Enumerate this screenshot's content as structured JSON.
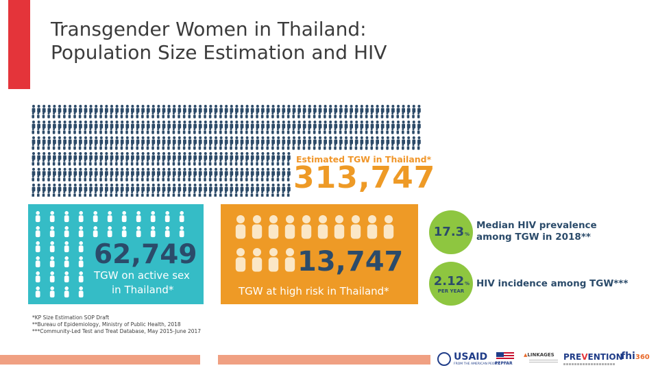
{
  "title": {
    "line1": "Transgender Women in Thailand:",
    "line2": "Population Size Estimation and HIV"
  },
  "estimated": {
    "label": "Estimated TGW in Thailand*",
    "value": "313,747"
  },
  "active_sex": {
    "value": "62,749",
    "caption_line1": "TGW on active sex",
    "caption_line2": "in Thailand*"
  },
  "high_risk": {
    "value": "13,747",
    "caption": "TGW at high risk in Thailand*"
  },
  "prevalence": {
    "value": "17.3",
    "unit": "%",
    "text_line1": "Median HIV prevalence",
    "text_line2": "among TGW in 2018**"
  },
  "incidence": {
    "value": "2.12",
    "unit": "%",
    "sub": "PER YEAR",
    "text": "HIV incidence among TGW***"
  },
  "footnotes": [
    "*KP Size Estimation SOP Draft",
    "**Bureau of Epidemiology, Ministry of Public Health, 2018",
    "***Community-Led Test and Treat Database, May 2015-June 2017"
  ],
  "logos": {
    "usaid": "USAID",
    "usaid_sub": "FROM THE AMERICAN PEOPLE",
    "pepfar": "PEPFAR",
    "linkages": "LINKAGES",
    "prevention_pre": "PRE",
    "prevention_v": "V",
    "prevention_post": "ENTION",
    "fhi": "fhi",
    "fhi_num": "360"
  },
  "colors": {
    "accent_red": "#e4343a",
    "teal": "#35bcc6",
    "orange": "#ee9a26",
    "green": "#8ec640",
    "navy": "#2b4b6a",
    "person_grid": "#2c4a68",
    "person_light": "#ffffff",
    "person_cream": "#fbe7c6"
  },
  "icons": {
    "person": "person-icon"
  }
}
